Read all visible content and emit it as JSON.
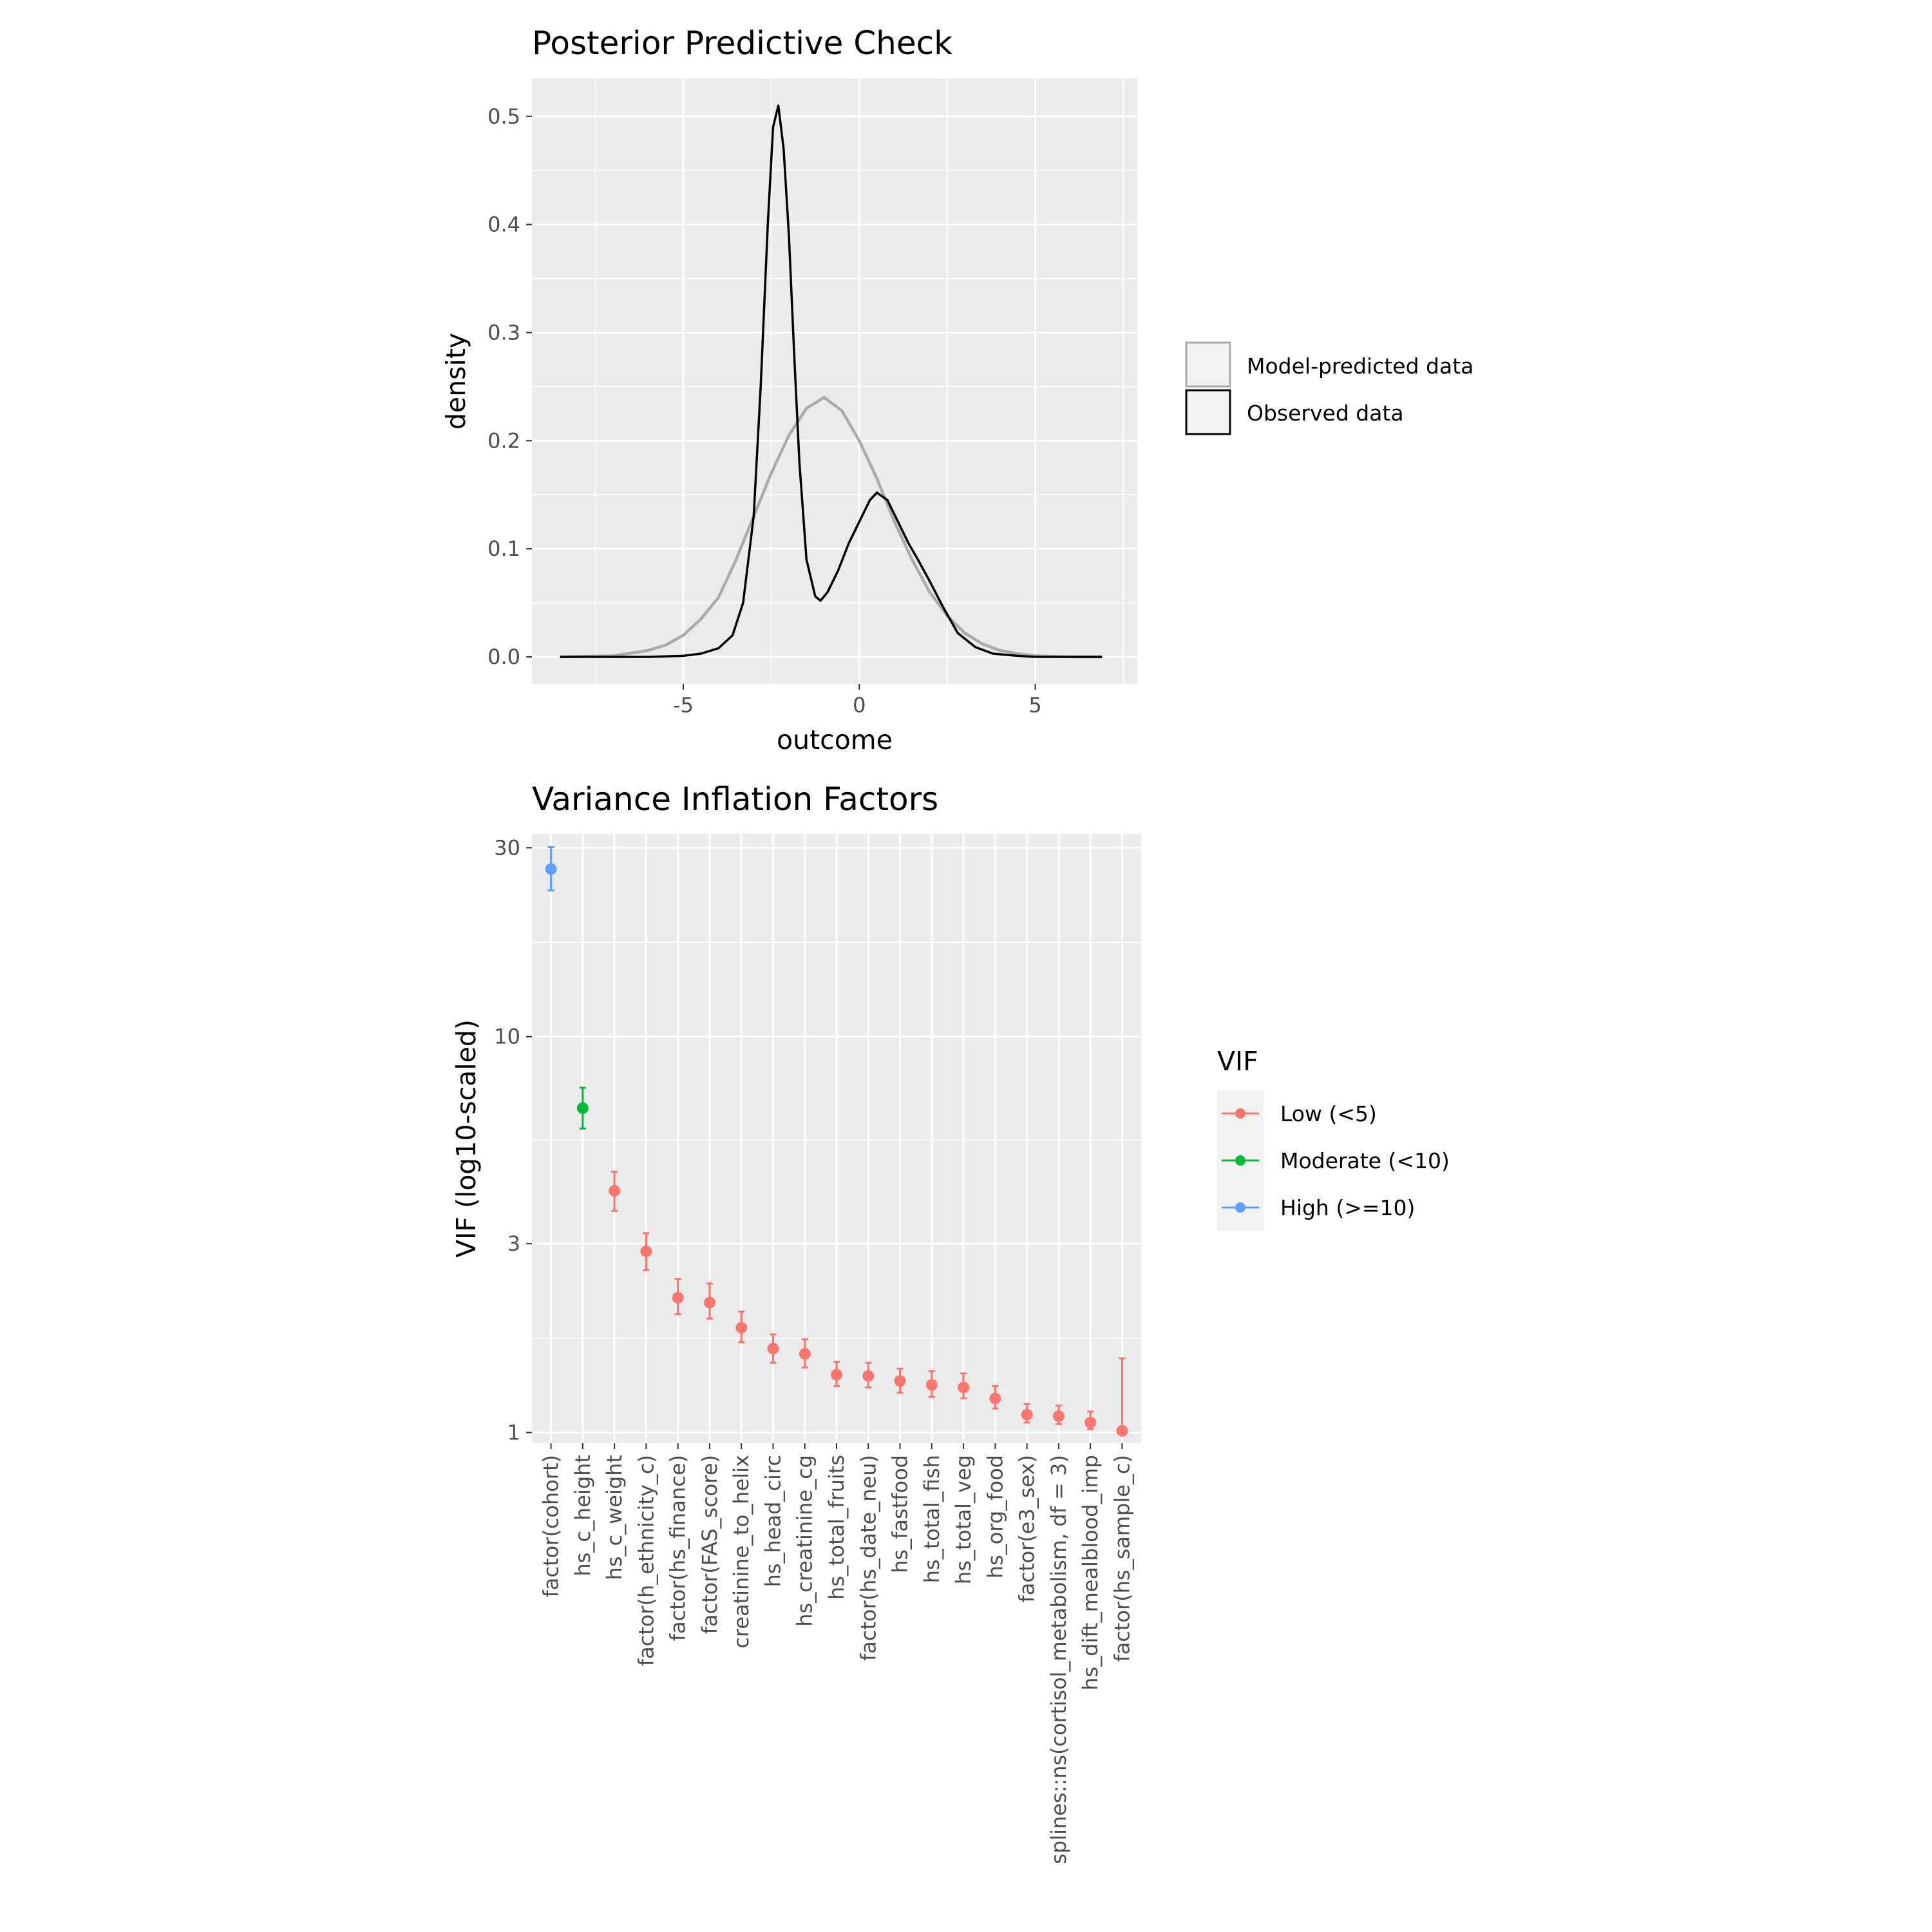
{
  "chart_data": [
    {
      "type": "line",
      "title": "Posterior Predictive Check",
      "xlabel": "outcome",
      "ylabel": "density",
      "xlim": [
        -9.3,
        7.9
      ],
      "ylim": [
        -0.025,
        0.535
      ],
      "x_ticks": [
        -5,
        0,
        5
      ],
      "x_tick_labels": [
        "-5",
        "0",
        "5"
      ],
      "y_ticks": [
        0,
        0.1,
        0.2,
        0.3,
        0.4,
        0.5
      ],
      "y_tick_labels": [
        "0.0",
        "0.1",
        "0.2",
        "0.3",
        "0.4",
        "0.5"
      ],
      "grid": true,
      "legend_position": "right",
      "legend": [
        {
          "label": "Model-predicted data",
          "color": "#aaaaaa"
        },
        {
          "label": "Observed data",
          "color": "#000000"
        }
      ],
      "series": [
        {
          "name": "Observed data",
          "color": "#000000",
          "x": [
            -8.5,
            -6,
            -5,
            -4.5,
            -4,
            -3.6,
            -3.3,
            -3,
            -2.8,
            -2.6,
            -2.45,
            -2.3,
            -2.15,
            -2,
            -1.85,
            -1.7,
            -1.5,
            -1.25,
            -1.1,
            -0.9,
            -0.6,
            -0.3,
            0,
            0.3,
            0.5,
            0.8,
            1.1,
            1.4,
            1.7,
            2,
            2.4,
            2.8,
            3.3,
            3.8,
            4.5,
            5,
            6,
            6.9
          ],
          "y": [
            0,
            0,
            0.001,
            0.003,
            0.008,
            0.02,
            0.05,
            0.13,
            0.25,
            0.4,
            0.49,
            0.51,
            0.47,
            0.39,
            0.28,
            0.18,
            0.09,
            0.056,
            0.052,
            0.06,
            0.08,
            0.105,
            0.125,
            0.145,
            0.152,
            0.145,
            0.125,
            0.105,
            0.088,
            0.07,
            0.045,
            0.022,
            0.009,
            0.003,
            0.001,
            0,
            0,
            0
          ]
        },
        {
          "name": "Model-predicted data",
          "color": "#aaaaaa",
          "x": [
            -8.5,
            -7,
            -6,
            -5.5,
            -5,
            -4.5,
            -4,
            -3.5,
            -3,
            -2.5,
            -2,
            -1.5,
            -1,
            -0.5,
            0,
            0.5,
            1,
            1.5,
            2,
            2.5,
            3,
            3.5,
            4,
            4.5,
            5,
            6,
            6.9
          ],
          "y": [
            0,
            0.001,
            0.006,
            0.011,
            0.02,
            0.035,
            0.055,
            0.09,
            0.13,
            0.17,
            0.205,
            0.23,
            0.24,
            0.228,
            0.2,
            0.165,
            0.125,
            0.09,
            0.06,
            0.038,
            0.022,
            0.012,
            0.006,
            0.003,
            0.001,
            0,
            0
          ]
        }
      ]
    },
    {
      "type": "scatter",
      "title": "Variance Inflation Factors",
      "xlabel": "",
      "ylabel": "VIF (log10-scaled)",
      "y_scale": "log10",
      "ylim": [
        0.94,
        32.5
      ],
      "y_ticks": [
        1,
        3,
        10,
        30
      ],
      "y_tick_labels": [
        "1",
        "3",
        "10",
        "30"
      ],
      "grid": true,
      "legend_title": "VIF",
      "legend_position": "right",
      "legend": [
        {
          "label": "Low (<5)",
          "color": "#f8766d"
        },
        {
          "label": "Moderate (<10)",
          "color": "#00ba38"
        },
        {
          "label": "High (>=10)",
          "color": "#619cff"
        }
      ],
      "categories": [
        "factor(cohort)",
        "hs_c_height",
        "hs_c_weight",
        "factor(h_ethnicity_c)",
        "factor(hs_finance)",
        "factor(FAS_score)",
        "creatinine_to_helix",
        "hs_head_circ",
        "hs_creatinine_cg",
        "hs_total_fruits",
        "factor(hs_date_neu)",
        "hs_fastfood",
        "hs_total_fish",
        "hs_total_veg",
        "hs_org_food",
        "factor(e3_sex)",
        "splines::ns(cortisol_metabolism, df = 3)",
        "hs_dift_mealblood_imp",
        "factor(hs_sample_c)"
      ],
      "values": [
        26.5,
        6.6,
        4.08,
        2.87,
        2.19,
        2.13,
        1.84,
        1.63,
        1.58,
        1.4,
        1.39,
        1.35,
        1.32,
        1.3,
        1.22,
        1.11,
        1.1,
        1.06,
        1.01
      ],
      "ci_low": [
        23.4,
        5.86,
        3.63,
        2.57,
        1.99,
        1.94,
        1.69,
        1.5,
        1.46,
        1.31,
        1.3,
        1.26,
        1.23,
        1.22,
        1.15,
        1.06,
        1.05,
        1.02,
        1.0
      ],
      "ci_high": [
        30.1,
        7.43,
        4.56,
        3.19,
        2.44,
        2.38,
        2.02,
        1.77,
        1.72,
        1.51,
        1.5,
        1.45,
        1.43,
        1.41,
        1.31,
        1.18,
        1.17,
        1.13,
        1.54
      ],
      "group": [
        "High (>=10)",
        "Moderate (<10)",
        "Low (<5)",
        "Low (<5)",
        "Low (<5)",
        "Low (<5)",
        "Low (<5)",
        "Low (<5)",
        "Low (<5)",
        "Low (<5)",
        "Low (<5)",
        "Low (<5)",
        "Low (<5)",
        "Low (<5)",
        "Low (<5)",
        "Low (<5)",
        "Low (<5)",
        "Low (<5)",
        "Low (<5)"
      ]
    }
  ]
}
